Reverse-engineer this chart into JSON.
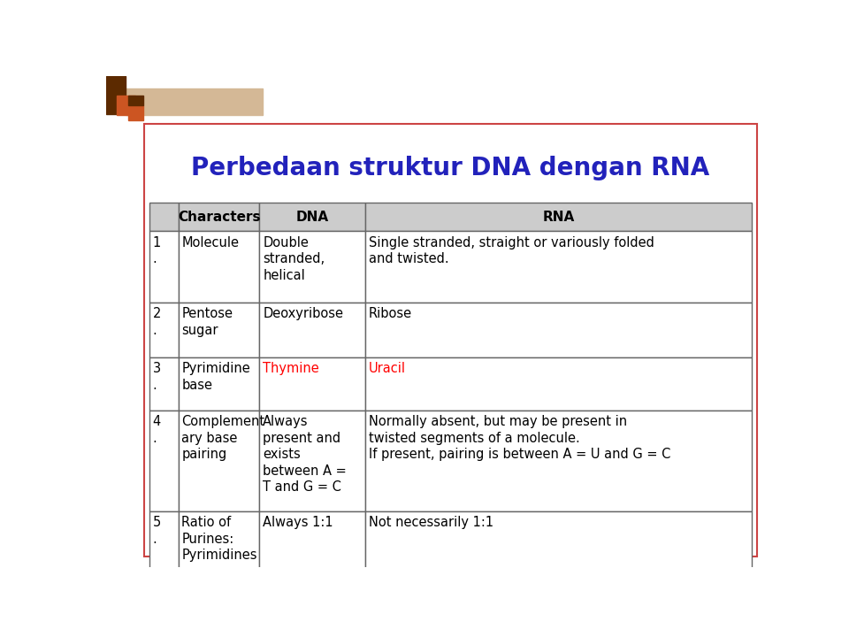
{
  "title": "Perbedaan struktur DNA dengan RNA",
  "title_color": "#2222bb",
  "title_fontsize": 20,
  "page_bg": "#ffffff",
  "outer_border_color": "#cc4444",
  "header_bg": "#cccccc",
  "rows": [
    {
      "num": "1\n.",
      "char": "Molecule",
      "dna": "Double\nstranded,\nhelical",
      "rna": "Single stranded, straight or variously folded\nand twisted.",
      "dna_color": "#000000",
      "rna_color": "#000000"
    },
    {
      "num": "2\n.",
      "char": "Pentose\nsugar",
      "dna": "Deoxyribose",
      "rna": "Ribose",
      "dna_color": "#000000",
      "rna_color": "#000000"
    },
    {
      "num": "3\n.",
      "char": "Pyrimidine\nbase",
      "dna": "Thymine",
      "rna": "Uracil",
      "dna_color": "#ff0000",
      "rna_color": "#ff0000"
    },
    {
      "num": "4\n.",
      "char": "Complement\nary base\npairing",
      "dna": "Always\npresent and\nexists\nbetween A =\nT and G = C",
      "rna": "Normally absent, but may be present in\ntwisted segments of a molecule.\nIf present, pairing is between A = U and G = C",
      "dna_color": "#000000",
      "rna_color": "#000000"
    },
    {
      "num": "5\n.",
      "char": "Ratio of\nPurines:\nPyrimidines",
      "dna": "Always 1:1",
      "rna": "Not necessarily 1:1",
      "dna_color": "#000000",
      "rna_color": "#000000"
    }
  ],
  "corner_dark": "#5c2a00",
  "corner_orange": "#cc5522",
  "corner_tan": "#d4b896"
}
